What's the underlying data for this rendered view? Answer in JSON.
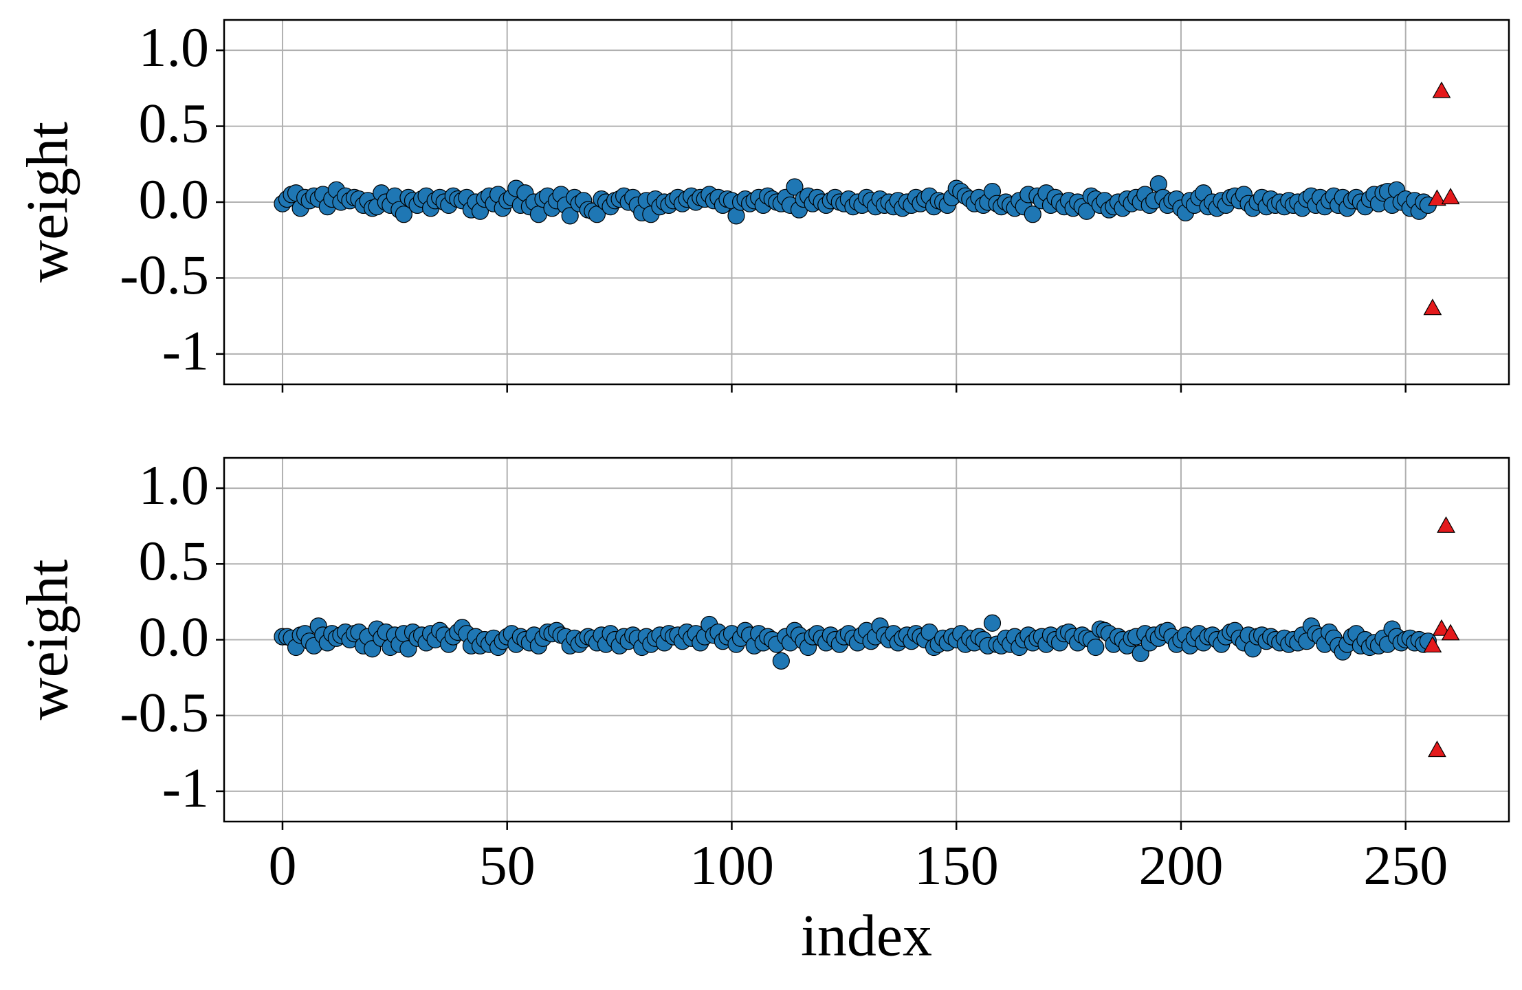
{
  "chart_data": [
    {
      "type": "scatter",
      "ylabel": "weight",
      "xlim": [
        -13,
        273
      ],
      "ylim": [
        -1.2,
        1.2
      ],
      "xticks": [
        0,
        50,
        100,
        150,
        200,
        250
      ],
      "show_xtick_labels": false,
      "yticks": [
        {
          "value": 1,
          "label": "1.0"
        },
        0.5,
        {
          "value": 0,
          "label": "0.0"
        },
        -0.5,
        -1
      ],
      "grid": true,
      "series": [
        {
          "color": "#1f77b4",
          "marker": "circle",
          "x": [
            0,
            1,
            2,
            3,
            4,
            5,
            6,
            7,
            8,
            9,
            10,
            11,
            12,
            13,
            14,
            15,
            16,
            17,
            18,
            19,
            20,
            21,
            22,
            23,
            24,
            25,
            26,
            27,
            28,
            29,
            30,
            31,
            32,
            33,
            34,
            35,
            36,
            37,
            38,
            39,
            40,
            41,
            42,
            43,
            44,
            45,
            46,
            47,
            48,
            49,
            50,
            51,
            52,
            53,
            54,
            55,
            56,
            57,
            58,
            59,
            60,
            61,
            62,
            63,
            64,
            65,
            66,
            67,
            68,
            69,
            70,
            71,
            72,
            73,
            74,
            75,
            76,
            77,
            78,
            79,
            80,
            81,
            82,
            83,
            84,
            85,
            86,
            87,
            88,
            89,
            90,
            91,
            92,
            93,
            94,
            95,
            96,
            97,
            98,
            99,
            100,
            101,
            102,
            103,
            104,
            105,
            106,
            107,
            108,
            109,
            110,
            111,
            112,
            113,
            114,
            115,
            116,
            117,
            118,
            119,
            120,
            121,
            122,
            123,
            124,
            125,
            126,
            127,
            128,
            129,
            130,
            131,
            132,
            133,
            134,
            135,
            136,
            137,
            138,
            139,
            140,
            141,
            142,
            143,
            144,
            145,
            146,
            147,
            148,
            149,
            150,
            151,
            152,
            153,
            154,
            155,
            156,
            157,
            158,
            159,
            160,
            161,
            162,
            163,
            164,
            165,
            166,
            167,
            168,
            169,
            170,
            171,
            172,
            173,
            174,
            175,
            176,
            177,
            178,
            179,
            180,
            181,
            182,
            183,
            184,
            185,
            186,
            187,
            188,
            189,
            190,
            191,
            192,
            193,
            194,
            195,
            196,
            197,
            198,
            199,
            200,
            201,
            202,
            203,
            204,
            205,
            206,
            207,
            208,
            209,
            210,
            211,
            212,
            213,
            214,
            215,
            216,
            217,
            218,
            219,
            220,
            221,
            222,
            223,
            224,
            225,
            226,
            227,
            228,
            229,
            230,
            231,
            232,
            233,
            234,
            235,
            236,
            237,
            238,
            239,
            240,
            241,
            242,
            243,
            244,
            245,
            246,
            247,
            248,
            249,
            250,
            251,
            252,
            253,
            254,
            255
          ],
          "values": [
            -0.01,
            0.02,
            0.05,
            0.06,
            -0.04,
            0.03,
            0.01,
            0.04,
            0.02,
            0.05,
            -0.03,
            0.02,
            0.08,
            0.0,
            0.04,
            0.01,
            0.03,
            0.02,
            -0.02,
            0.01,
            -0.04,
            -0.03,
            0.06,
            0.0,
            -0.02,
            0.04,
            -0.05,
            -0.08,
            0.03,
            0.01,
            -0.02,
            0.02,
            0.04,
            -0.04,
            0.01,
            0.03,
            0.0,
            -0.02,
            0.04,
            0.02,
            0.01,
            0.03,
            -0.05,
            0.0,
            -0.06,
            0.02,
            0.04,
            -0.01,
            0.05,
            -0.04,
            0.01,
            0.03,
            0.09,
            -0.02,
            0.06,
            -0.03,
            0.0,
            -0.08,
            0.02,
            0.04,
            -0.04,
            0.01,
            0.05,
            -0.02,
            -0.09,
            0.03,
            -0.01,
            0.01,
            -0.05,
            -0.06,
            -0.08,
            0.02,
            0.0,
            -0.03,
            0.01,
            0.02,
            0.04,
            0.0,
            0.03,
            -0.02,
            -0.07,
            0.01,
            -0.08,
            0.02,
            -0.03,
            0.0,
            -0.02,
            0.01,
            0.03,
            -0.01,
            0.02,
            0.04,
            0.0,
            0.03,
            0.02,
            0.05,
            0.01,
            0.03,
            -0.02,
            0.02,
            0.01,
            -0.09,
            0.0,
            0.02,
            -0.01,
            0.01,
            0.03,
            -0.02,
            0.04,
            0.02,
            0.0,
            -0.01,
            0.03,
            -0.02,
            0.1,
            -0.05,
            0.02,
            0.04,
            -0.01,
            0.03,
            0.0,
            -0.02,
            0.01,
            0.03,
            0.0,
            -0.01,
            0.02,
            -0.03,
            0.0,
            -0.02,
            0.03,
            0.01,
            -0.03,
            0.02,
            -0.02,
            0.0,
            -0.03,
            0.01,
            -0.04,
            0.0,
            -0.02,
            0.03,
            -0.01,
            0.02,
            0.04,
            -0.03,
            0.01,
            0.0,
            -0.02,
            0.03,
            0.09,
            0.07,
            0.04,
            0.02,
            -0.01,
            0.03,
            -0.02,
            0.0,
            0.07,
            -0.01,
            -0.03,
            0.0,
            -0.02,
            -0.04,
            0.01,
            -0.03,
            0.05,
            -0.08,
            0.04,
            0.01,
            0.06,
            -0.02,
            0.03,
            0.0,
            -0.03,
            0.01,
            -0.04,
            0.0,
            -0.03,
            -0.06,
            0.04,
            0.02,
            -0.02,
            0.01,
            -0.05,
            -0.03,
            0.0,
            -0.04,
            0.02,
            -0.01,
            0.03,
            0.0,
            0.05,
            -0.02,
            0.01,
            0.12,
            0.03,
            -0.02,
            0.01,
            0.02,
            -0.04,
            -0.07,
            0.01,
            -0.02,
            0.03,
            0.06,
            -0.03,
            0.0,
            -0.04,
            0.01,
            -0.02,
            0.03,
            0.04,
            0.01,
            0.05,
            -0.01,
            -0.04,
            0.0,
            0.03,
            -0.03,
            0.02,
            -0.02,
            0.0,
            -0.03,
            0.01,
            -0.02,
            0.0,
            -0.04,
            0.02,
            0.04,
            -0.02,
            0.03,
            -0.03,
            0.01,
            0.04,
            -0.02,
            0.03,
            -0.04,
            0.01,
            0.03,
            0.0,
            -0.03,
            0.02,
            0.05,
            -0.01,
            0.06,
            0.07,
            -0.02,
            0.08,
            0.0,
            0.02,
            -0.04,
            0.01,
            -0.06,
            0.0,
            -0.02
          ]
        },
        {
          "color": "#e41a1c",
          "marker": "triangle",
          "x": [
            256,
            257,
            258,
            260
          ],
          "values": [
            -0.7,
            0.02,
            0.73,
            0.03
          ]
        }
      ]
    },
    {
      "type": "scatter",
      "ylabel": "weight",
      "xlabel": "index",
      "xlim": [
        -13,
        273
      ],
      "ylim": [
        -1.2,
        1.2
      ],
      "xticks": [
        0,
        50,
        100,
        150,
        200,
        250
      ],
      "show_xtick_labels": true,
      "yticks": [
        {
          "value": 1,
          "label": "1.0"
        },
        0.5,
        {
          "value": 0,
          "label": "0.0"
        },
        -0.5,
        -1
      ],
      "grid": true,
      "series": [
        {
          "color": "#1f77b4",
          "marker": "circle",
          "x": [
            0,
            1,
            2,
            3,
            4,
            5,
            6,
            7,
            8,
            9,
            10,
            11,
            12,
            13,
            14,
            15,
            16,
            17,
            18,
            19,
            20,
            21,
            22,
            23,
            24,
            25,
            26,
            27,
            28,
            29,
            30,
            31,
            32,
            33,
            34,
            35,
            36,
            37,
            38,
            39,
            40,
            41,
            42,
            43,
            44,
            45,
            46,
            47,
            48,
            49,
            50,
            51,
            52,
            53,
            54,
            55,
            56,
            57,
            58,
            59,
            60,
            61,
            62,
            63,
            64,
            65,
            66,
            67,
            68,
            69,
            70,
            71,
            72,
            73,
            74,
            75,
            76,
            77,
            78,
            79,
            80,
            81,
            82,
            83,
            84,
            85,
            86,
            87,
            88,
            89,
            90,
            91,
            92,
            93,
            94,
            95,
            96,
            97,
            98,
            99,
            100,
            101,
            102,
            103,
            104,
            105,
            106,
            107,
            108,
            109,
            110,
            111,
            112,
            113,
            114,
            115,
            116,
            117,
            118,
            119,
            120,
            121,
            122,
            123,
            124,
            125,
            126,
            127,
            128,
            129,
            130,
            131,
            132,
            133,
            134,
            135,
            136,
            137,
            138,
            139,
            140,
            141,
            142,
            143,
            144,
            145,
            146,
            147,
            148,
            149,
            150,
            151,
            152,
            153,
            154,
            155,
            156,
            157,
            158,
            159,
            160,
            161,
            162,
            163,
            164,
            165,
            166,
            167,
            168,
            169,
            170,
            171,
            172,
            173,
            174,
            175,
            176,
            177,
            178,
            179,
            180,
            181,
            182,
            183,
            184,
            185,
            186,
            187,
            188,
            189,
            190,
            191,
            192,
            193,
            194,
            195,
            196,
            197,
            198,
            199,
            200,
            201,
            202,
            203,
            204,
            205,
            206,
            207,
            208,
            209,
            210,
            211,
            212,
            213,
            214,
            215,
            216,
            217,
            218,
            219,
            220,
            221,
            222,
            223,
            224,
            225,
            226,
            227,
            228,
            229,
            230,
            231,
            232,
            233,
            234,
            235,
            236,
            237,
            238,
            239,
            240,
            241,
            242,
            243,
            244,
            245,
            246,
            247,
            248,
            249,
            250,
            251,
            252,
            253,
            254,
            255
          ],
          "values": [
            0.02,
            0.02,
            0.01,
            -0.05,
            0.03,
            0.04,
            -0.01,
            -0.04,
            0.09,
            0.03,
            -0.02,
            0.04,
            0.01,
            0.03,
            0.05,
            0.0,
            0.04,
            0.05,
            -0.04,
            0.02,
            -0.06,
            0.07,
            0.01,
            0.05,
            -0.05,
            0.03,
            -0.03,
            0.04,
            -0.06,
            0.05,
            0.01,
            0.03,
            -0.02,
            0.04,
            0.0,
            0.06,
            0.03,
            -0.03,
            0.02,
            0.05,
            0.08,
            0.04,
            -0.04,
            0.02,
            -0.04,
            0.0,
            -0.03,
            0.01,
            -0.05,
            -0.01,
            0.02,
            0.04,
            -0.03,
            0.02,
            0.0,
            -0.02,
            0.03,
            -0.04,
            0.01,
            0.05,
            0.04,
            0.06,
            0.03,
            0.02,
            -0.04,
            0.01,
            -0.03,
            0.0,
            0.02,
            0.01,
            -0.02,
            0.03,
            -0.03,
            0.04,
            0.0,
            -0.04,
            0.02,
            -0.01,
            0.03,
            0.01,
            -0.05,
            0.02,
            -0.03,
            0.01,
            0.03,
            -0.02,
            0.04,
            0.02,
            0.03,
            -0.01,
            0.05,
            0.01,
            0.04,
            -0.02,
            0.02,
            0.1,
            0.03,
            0.05,
            -0.01,
            0.02,
            0.04,
            -0.03,
            0.01,
            0.06,
            0.03,
            -0.04,
            0.04,
            -0.02,
            0.02,
            0.0,
            -0.03,
            -0.14,
            0.02,
            -0.02,
            0.06,
            0.03,
            -0.01,
            -0.05,
            0.02,
            0.04,
            0.01,
            -0.02,
            0.03,
            0.0,
            -0.03,
            0.02,
            0.04,
            0.01,
            -0.02,
            0.03,
            0.06,
            -0.01,
            0.02,
            0.09,
            0.03,
            0.0,
            0.04,
            -0.02,
            0.01,
            0.03,
            -0.01,
            0.04,
            0.02,
            0.0,
            0.05,
            -0.05,
            -0.03,
            0.01,
            -0.02,
            0.02,
            0.0,
            0.04,
            -0.03,
            0.01,
            -0.02,
            0.02,
            0.0,
            -0.04,
            0.11,
            -0.03,
            -0.04,
            0.01,
            -0.03,
            0.02,
            -0.05,
            0.0,
            0.03,
            -0.02,
            0.01,
            0.02,
            -0.03,
            0.03,
            0.0,
            -0.02,
            0.04,
            0.05,
            0.02,
            -0.02,
            0.03,
            0.01,
            0.0,
            -0.05,
            0.07,
            0.06,
            0.04,
            -0.03,
            0.02,
            0.0,
            -0.04,
            0.01,
            0.02,
            -0.09,
            0.04,
            -0.02,
            0.03,
            0.01,
            0.05,
            0.06,
            0.02,
            -0.03,
            0.0,
            0.03,
            -0.04,
            0.01,
            0.04,
            -0.02,
            0.02,
            0.03,
            0.0,
            -0.03,
            0.02,
            0.05,
            0.06,
            0.01,
            -0.02,
            0.03,
            -0.06,
            0.02,
            0.03,
            -0.01,
            0.02,
            0.0,
            -0.02,
            0.01,
            -0.03,
            0.0,
            -0.02,
            0.03,
            -0.01,
            0.09,
            0.04,
            0.02,
            -0.03,
            0.05,
            0.01,
            -0.04,
            -0.08,
            -0.03,
            0.02,
            0.04,
            -0.04,
            0.0,
            -0.05,
            -0.02,
            -0.04,
            0.01,
            -0.03,
            0.07,
            0.02,
            -0.02,
            0.0,
            0.01,
            -0.02,
            0.0,
            -0.03,
            -0.01
          ]
        },
        {
          "color": "#e41a1c",
          "marker": "triangle",
          "x": [
            256,
            257,
            258,
            259,
            260
          ],
          "values": [
            -0.04,
            -0.73,
            0.07,
            0.75,
            0.04
          ]
        }
      ]
    }
  ]
}
